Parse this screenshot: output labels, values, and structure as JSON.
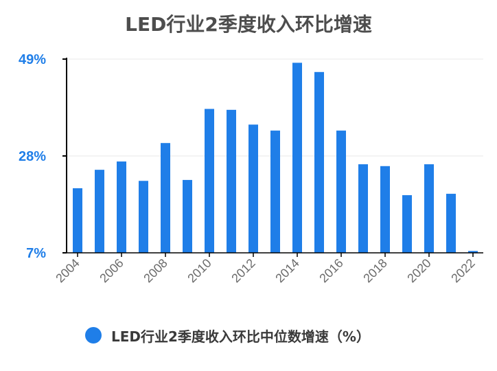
{
  "colors": {
    "bar": "#1f7ee8",
    "tick_label": "#1f7ee8",
    "axis": "#000000",
    "gridline": "#e9e9e9",
    "title": "#4d4d4d"
  },
  "chart_data": {
    "type": "bar",
    "title": "LED行业2季度收入环比增速",
    "xlabel": "",
    "ylabel": "",
    "ylim": [
      7,
      49
    ],
    "y_ticks": [
      "49%",
      "28%",
      "7%"
    ],
    "y_tick_values": [
      49,
      28,
      7
    ],
    "x_tick_labels": [
      "2004",
      "2006",
      "2008",
      "2010",
      "2012",
      "2014",
      "2016",
      "2018",
      "2020",
      "2022"
    ],
    "categories": [
      "2004",
      "2005",
      "2006",
      "2007",
      "2008",
      "2009",
      "2010",
      "2011",
      "2012",
      "2013",
      "2014",
      "2015",
      "2016",
      "2017",
      "2018",
      "2019",
      "2020",
      "2021",
      "2022"
    ],
    "series": [
      {
        "name": "LED行业2季度收入环比中位数增速（%）",
        "values": [
          21,
          25,
          26.8,
          22.6,
          30.8,
          22.8,
          38.2,
          38,
          34.8,
          33.5,
          48.2,
          46.2,
          33.5,
          26.2,
          25.8,
          19.5,
          26.2,
          19.8,
          7.4
        ]
      }
    ],
    "grid": true,
    "legend": "bottom"
  }
}
